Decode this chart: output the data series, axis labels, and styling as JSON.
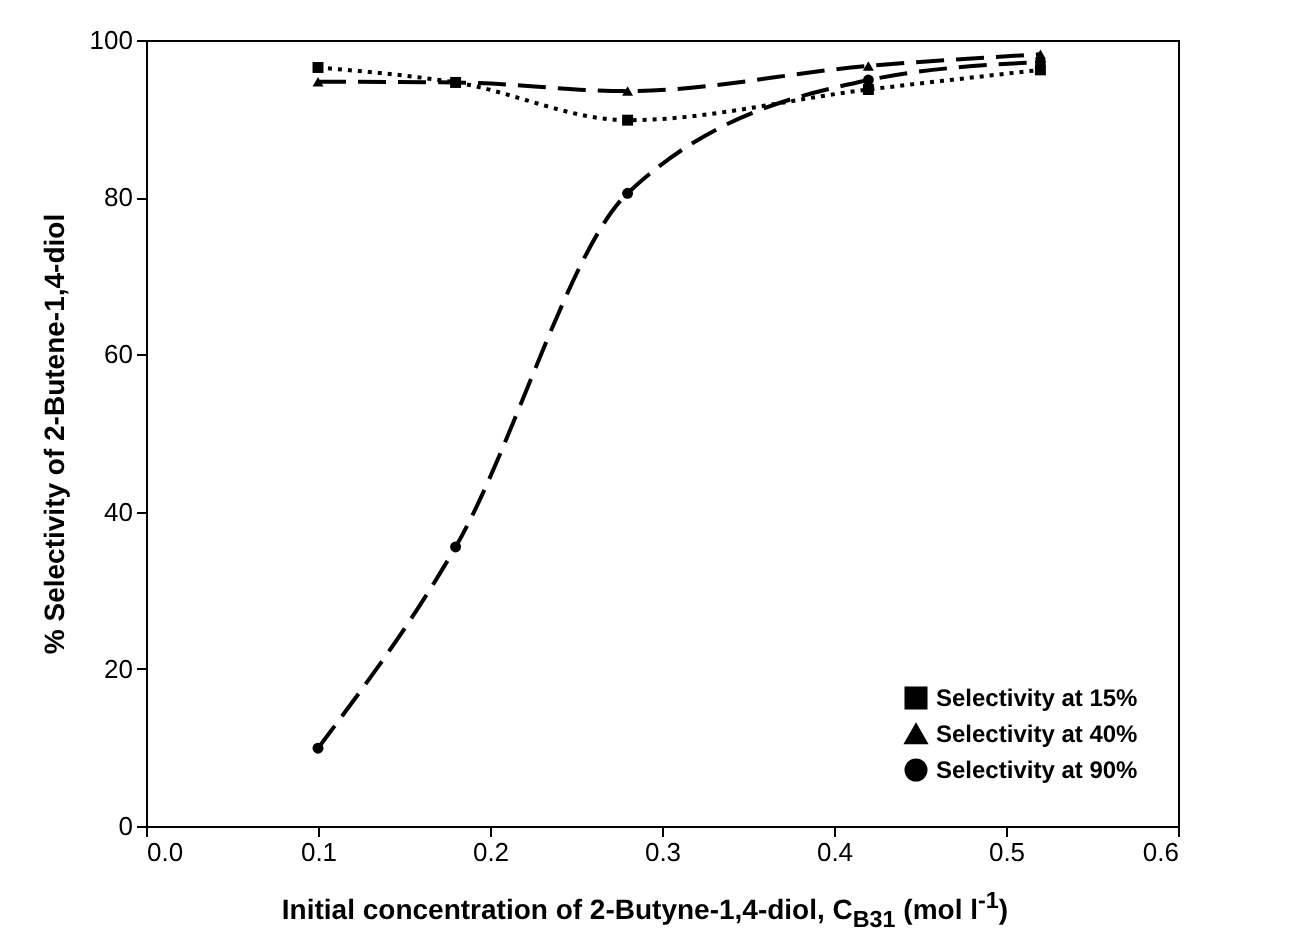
{
  "chart_data": {
    "type": "line",
    "xlabel": "Initial concentration of 2-Butyne-1,4-diol, C$_{B31}$ (mol l$^{-1}$)",
    "ylabel": "% Selectivity of 2-Butene-1,4-diol",
    "x": [
      0.1,
      0.18,
      0.28,
      0.42,
      0.52
    ],
    "series": [
      {
        "name": "Selectivity at 15%",
        "color": "#000000",
        "marker": "square",
        "line_style": "dotted",
        "values": [
          96.5,
          94.6,
          89.8,
          93.7,
          96.2
        ]
      },
      {
        "name": "Selectivity at 40%",
        "color": "#000000",
        "marker": "triangle",
        "line_style": "dashed",
        "values": [
          94.7,
          94.6,
          93.5,
          96.7,
          98.2
        ]
      },
      {
        "name": "Selectivity at 90%",
        "color": "#000000",
        "marker": "circle",
        "line_style": "dashed",
        "values": [
          9.9,
          35.5,
          80.5,
          94.9,
          97.2
        ]
      }
    ],
    "xlim": [
      0,
      0.6
    ],
    "xticks": [
      {
        "value": 0,
        "label": "0.0"
      },
      0.1,
      0.2,
      0.3,
      0.4,
      0.5,
      0.6
    ],
    "ylim": [
      0,
      100
    ],
    "yticks": [
      0,
      20,
      40,
      60,
      80,
      100
    ],
    "grid": false,
    "legend": "bottom right"
  }
}
